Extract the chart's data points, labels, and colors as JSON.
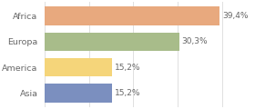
{
  "categories": [
    "Africa",
    "Europa",
    "America",
    "Asia"
  ],
  "values": [
    39.4,
    30.3,
    15.2,
    15.2
  ],
  "labels": [
    "39,4%",
    "30,3%",
    "15,2%",
    "15,2%"
  ],
  "bar_colors": [
    "#e8a97e",
    "#a8bc8a",
    "#f5d57a",
    "#7b8fbf"
  ],
  "background_color": "#ffffff",
  "xlim": [
    0,
    47
  ],
  "bar_height": 0.72,
  "label_fontsize": 6.5,
  "tick_fontsize": 6.8,
  "grid_color": "#e0e0e0",
  "text_color": "#666666"
}
